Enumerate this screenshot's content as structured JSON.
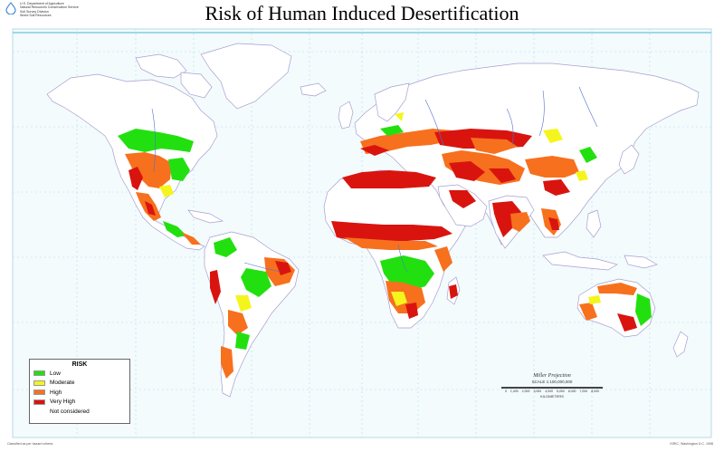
{
  "title": "Risk of Human Induced Desertification",
  "agency": {
    "lines": [
      "U.S. Department of Agriculture",
      "Natural Resources Conservation Service",
      "Soil Survey Division",
      "World Soil Resources"
    ]
  },
  "legend": {
    "title": "RISK",
    "items": [
      {
        "label": "Low",
        "color": "#22e00f"
      },
      {
        "label": "Moderate",
        "color": "#f4f51c"
      },
      {
        "label": "High",
        "color": "#f7701e"
      },
      {
        "label": "Very High",
        "color": "#d9140f"
      },
      {
        "label": "Not considered",
        "color": "#ffffff"
      }
    ]
  },
  "projection": {
    "name": "Miller Projection",
    "scale": "SCALE 1:100,000,000",
    "ticks": [
      "0",
      "1,000",
      "2,000",
      "3,000",
      "4,000",
      "5,000",
      "6,000",
      "7,000",
      "8,000"
    ],
    "units": "KILOMETERS"
  },
  "footer": {
    "left": "Classified as per hazard criteria",
    "right": "ISRIC, Washington D.C. 1998"
  },
  "colors": {
    "ocean": "#f3fbfd",
    "land": "#ffffff",
    "border": "#8a7ac2",
    "river": "#5070d0",
    "graticule": "#b7dbe6"
  }
}
